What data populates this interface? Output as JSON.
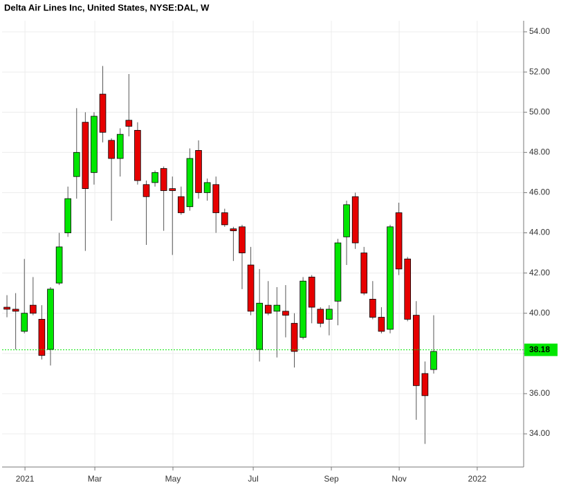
{
  "chart_data": {
    "type": "candlestick",
    "title": "Delta Air Lines Inc, United States, NYSE:DAL, W",
    "x": [
      0,
      1,
      2,
      3,
      4,
      5,
      6,
      7,
      8,
      9,
      10,
      11,
      12,
      13,
      14,
      15,
      16,
      17,
      18,
      19,
      20,
      21,
      22,
      23,
      24,
      25,
      26,
      27,
      28,
      29,
      30,
      31,
      32,
      33,
      34,
      35,
      36,
      37,
      38,
      39,
      40,
      41,
      42,
      43,
      44,
      45,
      46,
      47,
      48,
      49
    ],
    "open": [
      40.3,
      40.2,
      39.1,
      40.4,
      39.7,
      38.2,
      41.5,
      44.0,
      46.8,
      49.5,
      47.0,
      50.9,
      48.6,
      47.7,
      49.6,
      49.1,
      46.4,
      46.5,
      47.2,
      46.2,
      45.8,
      45.3,
      48.1,
      46.0,
      46.4,
      45.0,
      44.2,
      44.3,
      42.4,
      38.2,
      40.4,
      40.1,
      40.1,
      39.5,
      38.8,
      41.8,
      40.2,
      39.7,
      40.6,
      43.8,
      45.8,
      43.0,
      40.7,
      39.8,
      39.2,
      45.0,
      42.7,
      39.9,
      37.0,
      37.2
    ],
    "high": [
      40.9,
      41.0,
      42.7,
      41.8,
      40.4,
      41.3,
      44.0,
      46.3,
      50.2,
      50.0,
      50.0,
      52.3,
      48.7,
      49.2,
      51.9,
      49.5,
      46.6,
      47.1,
      47.3,
      46.8,
      46.3,
      48.2,
      48.6,
      46.7,
      46.8,
      45.2,
      44.3,
      44.4,
      43.3,
      42.2,
      41.6,
      41.3,
      41.4,
      40.0,
      41.8,
      41.9,
      40.3,
      40.4,
      43.7,
      45.6,
      46.0,
      43.3,
      41.6,
      40.3,
      44.4,
      45.5,
      42.8,
      40.6,
      37.6,
      39.9
    ],
    "low": [
      39.8,
      38.2,
      39.0,
      39.9,
      37.7,
      37.4,
      41.4,
      43.8,
      45.7,
      43.1,
      46.4,
      48.5,
      44.6,
      46.8,
      48.8,
      46.4,
      43.4,
      46.3,
      44.1,
      42.9,
      44.9,
      45.1,
      45.7,
      45.6,
      44.0,
      44.3,
      42.6,
      41.2,
      39.9,
      37.6,
      39.9,
      37.8,
      38.8,
      37.3,
      38.7,
      39.5,
      39.3,
      38.9,
      39.4,
      42.4,
      43.2,
      40.9,
      39.7,
      39.0,
      39.0,
      41.9,
      39.6,
      34.7,
      33.5,
      37.0
    ],
    "close": [
      40.2,
      40.1,
      40.0,
      40.0,
      37.9,
      41.2,
      43.3,
      45.7,
      48.0,
      46.2,
      49.8,
      49.0,
      47.7,
      48.9,
      49.3,
      46.6,
      45.8,
      47.0,
      46.1,
      46.1,
      45.0,
      47.7,
      46.0,
      46.5,
      45.0,
      44.4,
      44.1,
      43.0,
      40.1,
      40.5,
      40.0,
      40.4,
      39.9,
      38.1,
      41.6,
      40.3,
      39.5,
      40.2,
      43.5,
      45.4,
      43.5,
      41.0,
      39.8,
      39.1,
      44.3,
      42.2,
      39.7,
      36.4,
      35.9,
      38.1
    ],
    "up_color": "#00e600",
    "down_color": "#e60000",
    "last": 38.18,
    "last_color": "#00e600",
    "xlim": [
      -0.56,
      59.33
    ],
    "xticks": [
      {
        "value": 2.07,
        "label": "2021"
      },
      {
        "value": 10.09,
        "label": "Mar"
      },
      {
        "value": 19.06,
        "label": "May"
      },
      {
        "value": 28.28,
        "label": "Jul"
      },
      {
        "value": 37.25,
        "label": "Sep"
      },
      {
        "value": 45.04,
        "label": "Nov"
      },
      {
        "value": 54.0,
        "label": "2022"
      }
    ],
    "ylim": [
      32.35,
      54.55
    ],
    "yticks": [
      {
        "value": 34,
        "label": "34.00"
      },
      {
        "value": 36,
        "label": "36.00"
      },
      {
        "value": 38,
        "label": "38.00"
      },
      {
        "value": 40,
        "label": "40.00"
      },
      {
        "value": 42,
        "label": "42.00"
      },
      {
        "value": 44,
        "label": "44.00"
      },
      {
        "value": 46,
        "label": "46.00"
      },
      {
        "value": 48,
        "label": "48.00"
      },
      {
        "value": 50,
        "label": "50.00"
      },
      {
        "value": 52,
        "label": "52.00"
      },
      {
        "value": 54,
        "label": "54.00"
      }
    ],
    "grid": true
  }
}
